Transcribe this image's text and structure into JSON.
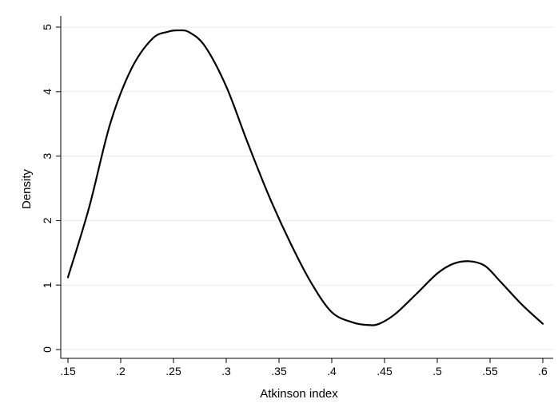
{
  "chart_data": {
    "type": "line",
    "title": "",
    "xlabel": "Atkinson index",
    "ylabel": "Density",
    "xlim": [
      0.15,
      0.6
    ],
    "ylim": [
      0,
      5
    ],
    "x_ticks": [
      0.15,
      0.2,
      0.25,
      0.3,
      0.35,
      0.4,
      0.45,
      0.5,
      0.55,
      0.6
    ],
    "x_tick_labels": [
      ".15",
      ".2",
      ".25",
      ".3",
      ".35",
      ".4",
      ".45",
      ".5",
      ".55",
      ".6"
    ],
    "y_ticks": [
      0,
      1,
      2,
      3,
      4,
      5
    ],
    "y_tick_labels": [
      "0",
      "1",
      "2",
      "3",
      "4",
      "5"
    ],
    "grid": true,
    "legend": "none",
    "line_color": "#000000",
    "grid_color": "#eaeaea",
    "series": [
      {
        "x": [
          0.15,
          0.17,
          0.19,
          0.21,
          0.23,
          0.245,
          0.255,
          0.265,
          0.28,
          0.3,
          0.32,
          0.34,
          0.36,
          0.38,
          0.4,
          0.42,
          0.435,
          0.445,
          0.46,
          0.48,
          0.5,
          0.515,
          0.53,
          0.545,
          0.56,
          0.58,
          0.6
        ],
        "y": [
          1.12,
          2.2,
          3.5,
          4.35,
          4.82,
          4.93,
          4.95,
          4.92,
          4.7,
          4.08,
          3.22,
          2.4,
          1.68,
          1.05,
          0.58,
          0.42,
          0.38,
          0.4,
          0.55,
          0.86,
          1.18,
          1.33,
          1.37,
          1.3,
          1.05,
          0.7,
          0.4
        ]
      }
    ]
  }
}
